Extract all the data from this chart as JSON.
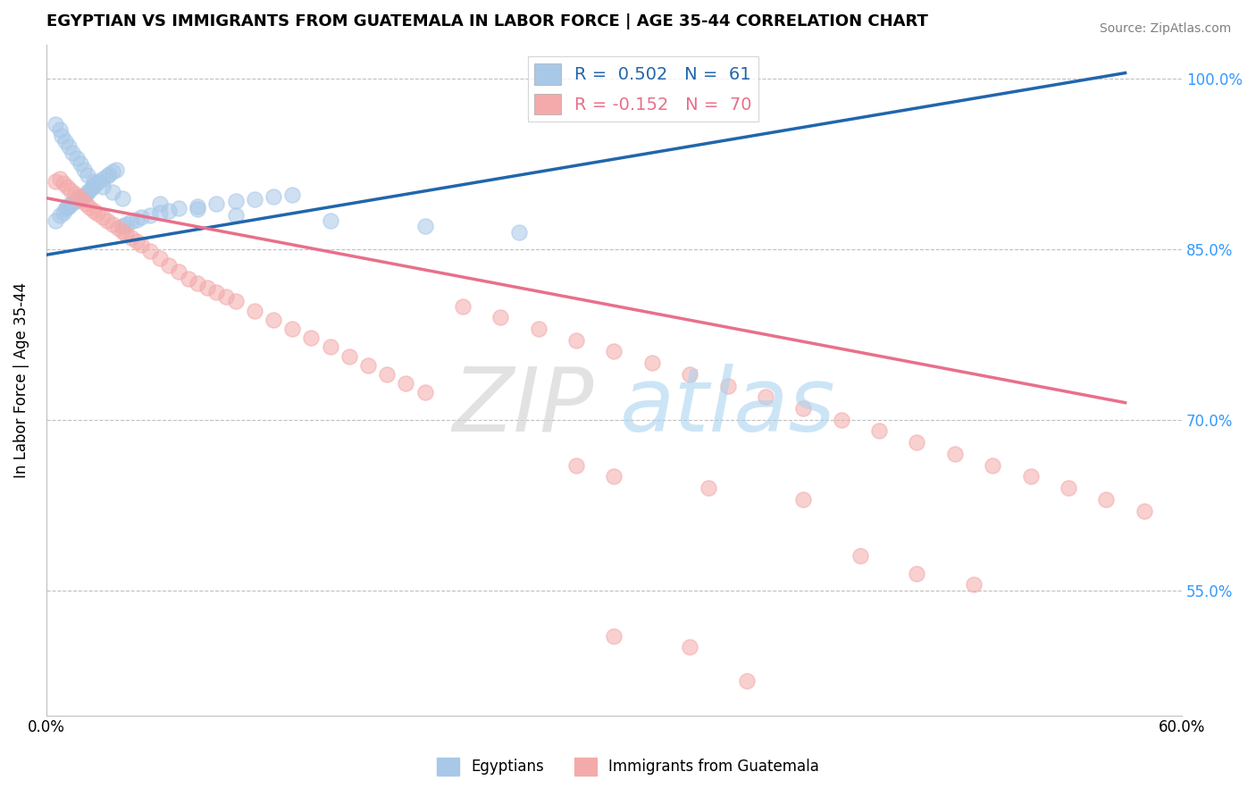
{
  "title": "EGYPTIAN VS IMMIGRANTS FROM GUATEMALA IN LABOR FORCE | AGE 35-44 CORRELATION CHART",
  "source": "Source: ZipAtlas.com",
  "ylabel": "In Labor Force | Age 35-44",
  "xlim": [
    0.0,
    0.6
  ],
  "ylim": [
    0.44,
    1.03
  ],
  "xticks": [
    0.0,
    0.1,
    0.2,
    0.3,
    0.4,
    0.5,
    0.6
  ],
  "xtick_labels": [
    "0.0%",
    "",
    "",
    "",
    "",
    "",
    "60.0%"
  ],
  "yticks": [
    0.55,
    0.7,
    0.85,
    1.0
  ],
  "ytick_labels": [
    "55.0%",
    "70.0%",
    "85.0%",
    "100.0%"
  ],
  "R_blue": 0.502,
  "N_blue": 61,
  "R_pink": -0.152,
  "N_pink": 70,
  "blue_color": "#a8c8e8",
  "pink_color": "#f4aaaa",
  "blue_line_color": "#2166ac",
  "pink_line_color": "#e8708a",
  "legend_label_blue": "Egyptians",
  "legend_label_pink": "Immigrants from Guatemala",
  "blue_line_x0": 0.0,
  "blue_line_y0": 0.845,
  "blue_line_x1": 0.57,
  "blue_line_y1": 1.005,
  "pink_line_x0": 0.0,
  "pink_line_y0": 0.895,
  "pink_line_x1": 0.57,
  "pink_line_y1": 0.715,
  "blue_scatter_x": [
    0.005,
    0.007,
    0.009,
    0.01,
    0.011,
    0.012,
    0.013,
    0.014,
    0.015,
    0.016,
    0.017,
    0.018,
    0.019,
    0.02,
    0.021,
    0.022,
    0.023,
    0.024,
    0.025,
    0.026,
    0.028,
    0.03,
    0.032,
    0.033,
    0.035,
    0.037,
    0.04,
    0.042,
    0.045,
    0.048,
    0.05,
    0.055,
    0.06,
    0.065,
    0.07,
    0.08,
    0.09,
    0.1,
    0.11,
    0.12,
    0.13,
    0.005,
    0.007,
    0.008,
    0.01,
    0.012,
    0.014,
    0.016,
    0.018,
    0.02,
    0.022,
    0.025,
    0.03,
    0.035,
    0.04,
    0.06,
    0.08,
    0.1,
    0.15,
    0.2,
    0.25
  ],
  "blue_scatter_y": [
    0.875,
    0.88,
    0.882,
    0.885,
    0.887,
    0.888,
    0.89,
    0.891,
    0.892,
    0.893,
    0.894,
    0.895,
    0.896,
    0.897,
    0.898,
    0.9,
    0.902,
    0.904,
    0.906,
    0.908,
    0.91,
    0.912,
    0.914,
    0.916,
    0.918,
    0.92,
    0.87,
    0.872,
    0.874,
    0.876,
    0.878,
    0.88,
    0.882,
    0.884,
    0.886,
    0.888,
    0.89,
    0.892,
    0.894,
    0.896,
    0.898,
    0.96,
    0.955,
    0.95,
    0.945,
    0.94,
    0.935,
    0.93,
    0.925,
    0.92,
    0.915,
    0.91,
    0.905,
    0.9,
    0.895,
    0.89,
    0.885,
    0.88,
    0.875,
    0.87,
    0.865
  ],
  "pink_scatter_x": [
    0.005,
    0.007,
    0.009,
    0.011,
    0.013,
    0.015,
    0.017,
    0.019,
    0.021,
    0.023,
    0.025,
    0.027,
    0.03,
    0.032,
    0.035,
    0.038,
    0.04,
    0.042,
    0.045,
    0.048,
    0.05,
    0.055,
    0.06,
    0.065,
    0.07,
    0.075,
    0.08,
    0.085,
    0.09,
    0.095,
    0.1,
    0.11,
    0.12,
    0.13,
    0.14,
    0.15,
    0.16,
    0.17,
    0.18,
    0.19,
    0.2,
    0.22,
    0.24,
    0.26,
    0.28,
    0.3,
    0.32,
    0.34,
    0.36,
    0.38,
    0.4,
    0.42,
    0.44,
    0.46,
    0.48,
    0.5,
    0.52,
    0.54,
    0.56,
    0.58,
    0.28,
    0.3,
    0.35,
    0.4,
    0.43,
    0.46,
    0.49,
    0.3,
    0.34,
    0.37
  ],
  "pink_scatter_y": [
    0.91,
    0.912,
    0.908,
    0.905,
    0.902,
    0.899,
    0.896,
    0.893,
    0.89,
    0.887,
    0.884,
    0.881,
    0.878,
    0.875,
    0.872,
    0.869,
    0.866,
    0.863,
    0.86,
    0.857,
    0.854,
    0.848,
    0.842,
    0.836,
    0.83,
    0.824,
    0.82,
    0.816,
    0.812,
    0.808,
    0.804,
    0.796,
    0.788,
    0.78,
    0.772,
    0.764,
    0.756,
    0.748,
    0.74,
    0.732,
    0.724,
    0.8,
    0.79,
    0.78,
    0.77,
    0.76,
    0.75,
    0.74,
    0.73,
    0.72,
    0.71,
    0.7,
    0.69,
    0.68,
    0.67,
    0.66,
    0.65,
    0.64,
    0.63,
    0.62,
    0.66,
    0.65,
    0.64,
    0.63,
    0.58,
    0.565,
    0.555,
    0.51,
    0.5,
    0.47
  ]
}
